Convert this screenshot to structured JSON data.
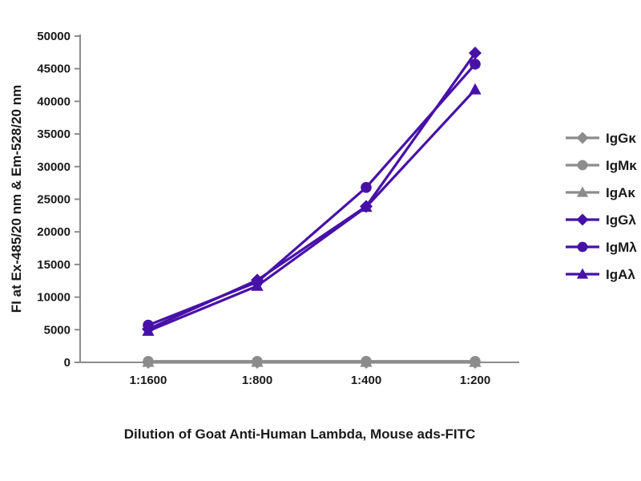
{
  "page": {
    "background": "#ffffff",
    "axis_color": "#8c8c8c",
    "text_color": "#1a1a1a"
  },
  "chart_data": {
    "type": "line",
    "title": "",
    "xlabel": "Dilution of Goat Anti-Human Lambda, Mouse ads-FITC",
    "ylabel": "FI at Ex-485/20 nm & Em-528/20 nm",
    "categories": [
      "1:1600",
      "1:800",
      "1:400",
      "1:200"
    ],
    "ylim": [
      0,
      50000
    ],
    "ytick_step": 5000,
    "yticks": [
      0,
      5000,
      10000,
      15000,
      20000,
      25000,
      30000,
      35000,
      40000,
      45000,
      50000
    ],
    "grid": false,
    "legend_position": "right",
    "series": [
      {
        "name": "IgGκ",
        "marker": "diamond",
        "color": "#8c8c8c",
        "values": [
          0,
          0,
          0,
          0
        ]
      },
      {
        "name": "IgMκ",
        "marker": "circle",
        "color": "#8c8c8c",
        "values": [
          150,
          150,
          150,
          150
        ]
      },
      {
        "name": "IgAκ",
        "marker": "triangle",
        "color": "#8c8c8c",
        "values": [
          50,
          50,
          50,
          50
        ]
      },
      {
        "name": "IgGλ",
        "marker": "diamond",
        "color": "#4711a8",
        "values": [
          5100,
          12600,
          23900,
          47400
        ]
      },
      {
        "name": "IgMλ",
        "marker": "circle",
        "color": "#4711a8",
        "values": [
          5700,
          12300,
          26800,
          45700
        ]
      },
      {
        "name": "IgAλ",
        "marker": "triangle",
        "color": "#4711a8",
        "values": [
          4800,
          11700,
          23800,
          41800
        ]
      }
    ]
  }
}
